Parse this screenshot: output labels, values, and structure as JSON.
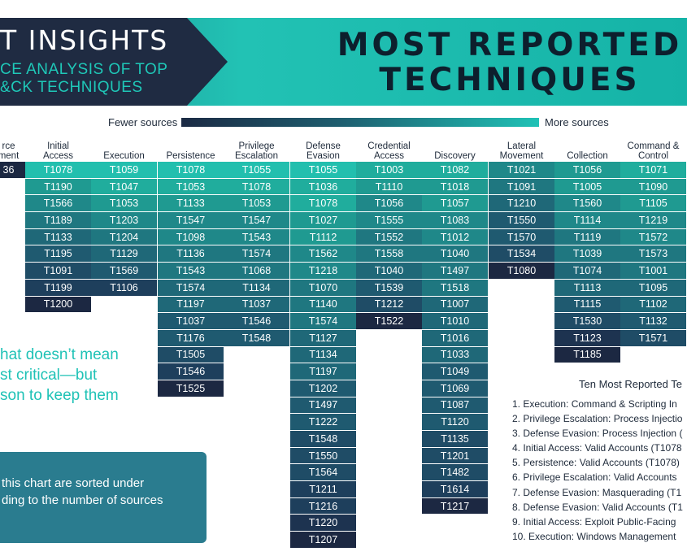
{
  "header": {
    "left_title": "T INSIGHTS",
    "left_subtitle_line1": "CE ANALYSIS OF TOP",
    "left_subtitle_line2": "&CK TECHNIQUES",
    "right_title": "MOST REPORTED\nTECHNIQUES",
    "colors": {
      "dark_navy": "#1f2b42",
      "teal": "#1fb8ad",
      "teal_light": "#22c9b9"
    }
  },
  "legend": {
    "low_label": "Fewer sources",
    "high_label": "More sources"
  },
  "columns": [
    {
      "header": "rce\nment",
      "cells": [
        {
          "id": "36",
          "shade": 0
        }
      ]
    },
    {
      "header": "Initial\nAccess",
      "cells": [
        {
          "id": "T1078",
          "shade": 10
        },
        {
          "id": "T1190",
          "shade": 8
        },
        {
          "id": "T1566",
          "shade": 7
        },
        {
          "id": "T1189",
          "shade": 6
        },
        {
          "id": "T1133",
          "shade": 5
        },
        {
          "id": "T1195",
          "shade": 4
        },
        {
          "id": "T1091",
          "shade": 3
        },
        {
          "id": "T1199",
          "shade": 2
        },
        {
          "id": "T1200",
          "shade": 0
        }
      ]
    },
    {
      "header": "Execution",
      "cells": [
        {
          "id": "T1059",
          "shade": 10
        },
        {
          "id": "T1047",
          "shade": 9
        },
        {
          "id": "T1053",
          "shade": 8
        },
        {
          "id": "T1203",
          "shade": 7
        },
        {
          "id": "T1204",
          "shade": 6
        },
        {
          "id": "T1129",
          "shade": 5
        },
        {
          "id": "T1569",
          "shade": 4
        },
        {
          "id": "T1106",
          "shade": 2
        }
      ]
    },
    {
      "header": "Persistence",
      "cells": [
        {
          "id": "T1078",
          "shade": 10
        },
        {
          "id": "T1053",
          "shade": 9
        },
        {
          "id": "T1133",
          "shade": 8
        },
        {
          "id": "T1547",
          "shade": 7
        },
        {
          "id": "T1098",
          "shade": 7
        },
        {
          "id": "T1136",
          "shade": 6
        },
        {
          "id": "T1543",
          "shade": 6
        },
        {
          "id": "T1574",
          "shade": 5
        },
        {
          "id": "T1197",
          "shade": 5
        },
        {
          "id": "T1037",
          "shade": 4
        },
        {
          "id": "T1176",
          "shade": 4
        },
        {
          "id": "T1505",
          "shade": 3
        },
        {
          "id": "T1546",
          "shade": 2
        },
        {
          "id": "T1525",
          "shade": 0
        }
      ]
    },
    {
      "header": "Privilege\nEscalation",
      "cells": [
        {
          "id": "T1055",
          "shade": 10
        },
        {
          "id": "T1078",
          "shade": 9
        },
        {
          "id": "T1053",
          "shade": 8
        },
        {
          "id": "T1547",
          "shade": 7
        },
        {
          "id": "T1543",
          "shade": 7
        },
        {
          "id": "T1574",
          "shade": 6
        },
        {
          "id": "T1068",
          "shade": 6
        },
        {
          "id": "T1134",
          "shade": 5
        },
        {
          "id": "T1037",
          "shade": 5
        },
        {
          "id": "T1546",
          "shade": 4
        },
        {
          "id": "T1548",
          "shade": 4
        }
      ]
    },
    {
      "header": "Defense\nEvasion",
      "cells": [
        {
          "id": "T1055",
          "shade": 10
        },
        {
          "id": "T1036",
          "shade": 9
        },
        {
          "id": "T1078",
          "shade": 9
        },
        {
          "id": "T1027",
          "shade": 8
        },
        {
          "id": "T1112",
          "shade": 8
        },
        {
          "id": "T1562",
          "shade": 7
        },
        {
          "id": "T1218",
          "shade": 7
        },
        {
          "id": "T1070",
          "shade": 6
        },
        {
          "id": "T1140",
          "shade": 6
        },
        {
          "id": "T1574",
          "shade": 6
        },
        {
          "id": "T1127",
          "shade": 5
        },
        {
          "id": "T1134",
          "shade": 5
        },
        {
          "id": "T1197",
          "shade": 5
        },
        {
          "id": "T1202",
          "shade": 4
        },
        {
          "id": "T1497",
          "shade": 4
        },
        {
          "id": "T1222",
          "shade": 4
        },
        {
          "id": "T1548",
          "shade": 3
        },
        {
          "id": "T1550",
          "shade": 3
        },
        {
          "id": "T1564",
          "shade": 3
        },
        {
          "id": "T1211",
          "shade": 2
        },
        {
          "id": "T1216",
          "shade": 2
        },
        {
          "id": "T1220",
          "shade": 1
        },
        {
          "id": "T1207",
          "shade": 0
        }
      ]
    },
    {
      "header": "Credential\nAccess",
      "cells": [
        {
          "id": "T1003",
          "shade": 9
        },
        {
          "id": "T1110",
          "shade": 8
        },
        {
          "id": "T1056",
          "shade": 7
        },
        {
          "id": "T1555",
          "shade": 7
        },
        {
          "id": "T1552",
          "shade": 6
        },
        {
          "id": "T1558",
          "shade": 6
        },
        {
          "id": "T1040",
          "shade": 5
        },
        {
          "id": "T1539",
          "shade": 4
        },
        {
          "id": "T1212",
          "shade": 3
        },
        {
          "id": "T1522",
          "shade": 0
        }
      ]
    },
    {
      "header": "Discovery",
      "cells": [
        {
          "id": "T1082",
          "shade": 9
        },
        {
          "id": "T1018",
          "shade": 8
        },
        {
          "id": "T1057",
          "shade": 8
        },
        {
          "id": "T1083",
          "shade": 7
        },
        {
          "id": "T1012",
          "shade": 7
        },
        {
          "id": "T1040",
          "shade": 6
        },
        {
          "id": "T1497",
          "shade": 6
        },
        {
          "id": "T1518",
          "shade": 6
        },
        {
          "id": "T1007",
          "shade": 5
        },
        {
          "id": "T1010",
          "shade": 5
        },
        {
          "id": "T1016",
          "shade": 5
        },
        {
          "id": "T1033",
          "shade": 5
        },
        {
          "id": "T1049",
          "shade": 4
        },
        {
          "id": "T1069",
          "shade": 4
        },
        {
          "id": "T1087",
          "shade": 4
        },
        {
          "id": "T1120",
          "shade": 4
        },
        {
          "id": "T1135",
          "shade": 3
        },
        {
          "id": "T1201",
          "shade": 3
        },
        {
          "id": "T1482",
          "shade": 3
        },
        {
          "id": "T1614",
          "shade": 2
        },
        {
          "id": "T1217",
          "shade": 0
        }
      ]
    },
    {
      "header": "Lateral\nMovement",
      "cells": [
        {
          "id": "T1021",
          "shade": 7
        },
        {
          "id": "T1091",
          "shade": 6
        },
        {
          "id": "T1210",
          "shade": 5
        },
        {
          "id": "T1550",
          "shade": 4
        },
        {
          "id": "T1570",
          "shade": 4
        },
        {
          "id": "T1534",
          "shade": 3
        },
        {
          "id": "T1080",
          "shade": 0
        }
      ]
    },
    {
      "header": "Collection",
      "cells": [
        {
          "id": "T1056",
          "shade": 8
        },
        {
          "id": "T1005",
          "shade": 8
        },
        {
          "id": "T1560",
          "shade": 7
        },
        {
          "id": "T1114",
          "shade": 7
        },
        {
          "id": "T1119",
          "shade": 6
        },
        {
          "id": "T1039",
          "shade": 6
        },
        {
          "id": "T1074",
          "shade": 5
        },
        {
          "id": "T1113",
          "shade": 5
        },
        {
          "id": "T1115",
          "shade": 4
        },
        {
          "id": "T1530",
          "shade": 3
        },
        {
          "id": "T1123",
          "shade": 1
        },
        {
          "id": "T1185",
          "shade": 0
        }
      ]
    },
    {
      "header": "Command &\nControl",
      "cells": [
        {
          "id": "T1071",
          "shade": 9
        },
        {
          "id": "T1090",
          "shade": 8
        },
        {
          "id": "T1105",
          "shade": 8
        },
        {
          "id": "T1219",
          "shade": 7
        },
        {
          "id": "T1572",
          "shade": 7
        },
        {
          "id": "T1573",
          "shade": 6
        },
        {
          "id": "T1001",
          "shade": 6
        },
        {
          "id": "T1095",
          "shade": 5
        },
        {
          "id": "T1102",
          "shade": 5
        },
        {
          "id": "T1132",
          "shade": 4
        },
        {
          "id": "T1571",
          "shade": 3
        }
      ]
    }
  ],
  "quote_text": "hat doesn’t mean\nst critical—but\nson to keep them",
  "note_text": "this chart are sorted under\nding to the number of sources",
  "top_ten": {
    "title": "Ten Most Reported Te",
    "items": [
      "1. Execution: Command & Scripting In",
      "2. Privilege Escalation: Process Injectio",
      "3. Defense Evasion: Process Injection (",
      "4. Initial Access: Valid Accounts (T1078",
      "5. Persistence: Valid Accounts (T1078)",
      "6. Privilege Escalation: Valid Accounts",
      "7. Defense Evasion: Masquerading (T1",
      "8. Defense Evasion: Valid Accounts (T1",
      "9. Initial Access: Exploit Public-Facing",
      "10. Execution: Windows Management"
    ]
  }
}
